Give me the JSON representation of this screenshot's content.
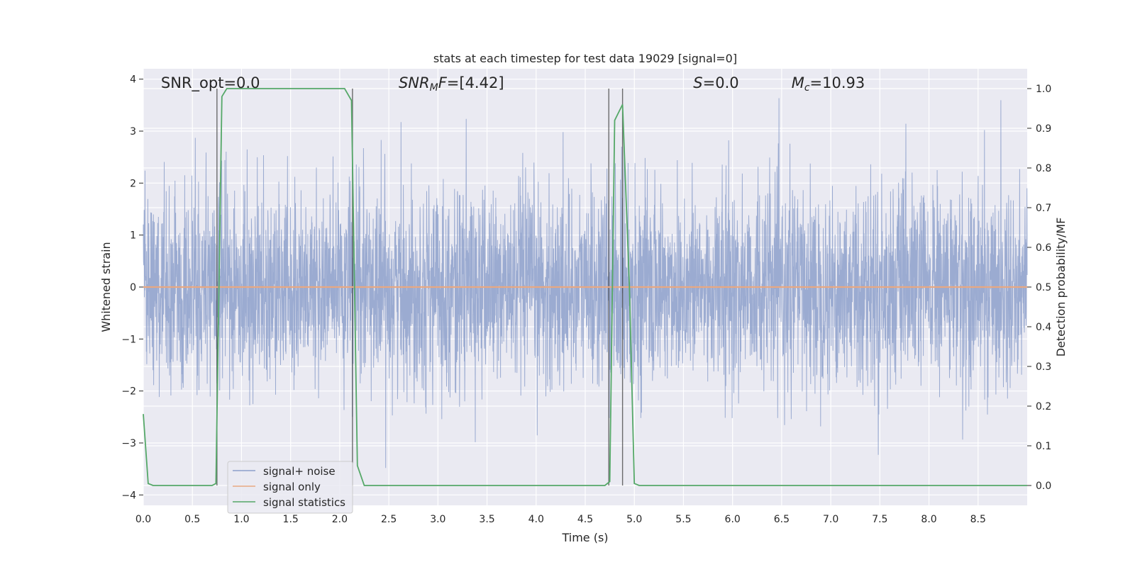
{
  "chart_data": {
    "type": "line",
    "title": "stats at each timestep for test data 19029 [signal=0]",
    "xlabel": "Time (s)",
    "ylabel_left": "Whitened strain",
    "ylabel_right": "Detection probability/MF",
    "xlim": [
      0.0,
      9.0
    ],
    "ylim_left": [
      -4.2,
      4.2
    ],
    "ylim_right": [
      -0.05,
      1.05
    ],
    "x_ticks": [
      0.0,
      0.5,
      1.0,
      1.5,
      2.0,
      2.5,
      3.0,
      3.5,
      4.0,
      4.5,
      5.0,
      5.5,
      6.0,
      6.5,
      7.0,
      7.5,
      8.0,
      8.5
    ],
    "x_tick_labels": [
      "0.0",
      "0.5",
      "1.0",
      "1.5",
      "2.0",
      "2.5",
      "3.0",
      "3.5",
      "4.0",
      "4.5",
      "5.0",
      "5.5",
      "6.0",
      "6.5",
      "7.0",
      "7.5",
      "8.0",
      "8.5"
    ],
    "y_ticks_left": [
      4,
      3,
      2,
      1,
      0,
      -1,
      -2,
      -3,
      -4
    ],
    "y_tick_labels_left": [
      "4",
      "3",
      "2",
      "1",
      "0",
      "−1",
      "−2",
      "−3",
      "−4"
    ],
    "y_ticks_right": [
      1.0,
      0.9,
      0.8,
      0.7,
      0.6,
      0.5,
      0.4,
      0.3,
      0.2,
      0.1,
      0.0
    ],
    "y_tick_labels_right": [
      "1.0",
      "0.9",
      "0.8",
      "0.7",
      "0.6",
      "0.5",
      "0.4",
      "0.3",
      "0.2",
      "0.1",
      "0.0"
    ],
    "grid": true,
    "legend_position": "bottom-left",
    "annotations": [
      {
        "text": "SNR_opt=0.0",
        "x": 0.18
      },
      {
        "text": "SNR_MF=[4.42]",
        "x": 2.6
      },
      {
        "text": "S=0.0",
        "x": 5.6
      },
      {
        "text": "M_c=10.93",
        "x": 6.6
      }
    ],
    "vertical_lines_x": [
      0.75,
      2.13,
      4.74,
      4.88
    ],
    "series": [
      {
        "name": "signal+ noise",
        "color": "#8da0cb",
        "axis": "left",
        "kind": "noise",
        "mean": 0.0,
        "std": 0.95,
        "x_range": [
          0.0,
          9.0
        ],
        "num_points": 4096
      },
      {
        "name": "signal only",
        "color": "#e8a882",
        "axis": "left",
        "x": [
          0.0,
          9.0
        ],
        "y": [
          0.0,
          0.0
        ]
      },
      {
        "name": "signal statistics",
        "color": "#55a868",
        "axis": "right",
        "x": [
          0.0,
          0.05,
          0.1,
          0.7,
          0.74,
          0.8,
          0.85,
          2.05,
          2.12,
          2.18,
          2.25,
          4.7,
          4.75,
          4.8,
          4.88,
          4.95,
          5.0,
          5.05,
          9.0
        ],
        "y": [
          0.18,
          0.005,
          0.0,
          0.0,
          0.005,
          0.98,
          1.0,
          1.0,
          0.97,
          0.05,
          0.0,
          0.0,
          0.01,
          0.92,
          0.96,
          0.5,
          0.005,
          0.0,
          0.0
        ]
      }
    ]
  }
}
